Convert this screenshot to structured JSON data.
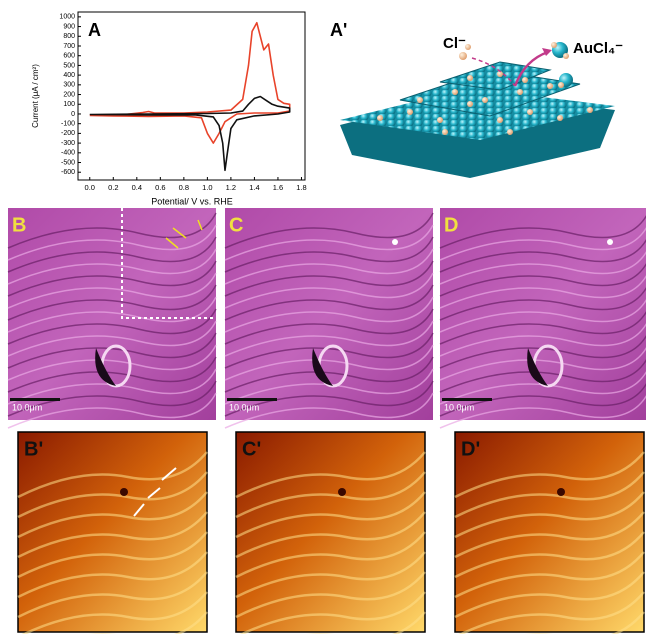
{
  "chart_data": {
    "type": "line",
    "panel_label": "A",
    "x_label": "Potential/ V vs. RHE",
    "y_label": "Current (μA / cm²)",
    "xlim": [
      -0.1,
      1.83
    ],
    "xticks": [
      {
        "value": 0,
        "label": "0.0"
      },
      0.2,
      0.4,
      0.6,
      0.8,
      {
        "value": 1,
        "label": "1.0"
      },
      1.2,
      1.4,
      1.6,
      1.8
    ],
    "ylim": [
      -680,
      1050
    ],
    "yticks": [
      -600,
      -500,
      -400,
      -300,
      -200,
      -100,
      0,
      100,
      200,
      300,
      400,
      500,
      600,
      700,
      800,
      900,
      1000
    ],
    "series": [
      {
        "color": "#e8432a",
        "x": [
          0.0,
          0.3,
          0.45,
          0.5,
          0.55,
          0.8,
          1.0,
          1.2,
          1.3,
          1.35,
          1.38,
          1.42,
          1.45,
          1.48,
          1.52,
          1.56,
          1.6,
          1.65,
          1.7,
          1.7,
          1.6,
          1.4,
          1.25,
          1.15,
          1.1,
          1.05,
          1.0,
          0.95,
          0.8,
          0.5,
          0.2,
          0.0
        ],
        "values": [
          -10,
          -5,
          15,
          25,
          10,
          10,
          20,
          40,
          150,
          500,
          850,
          940,
          800,
          660,
          720,
          400,
          150,
          110,
          100,
          30,
          10,
          10,
          0,
          -80,
          -200,
          -300,
          -200,
          -40,
          -20,
          -25,
          -20,
          -15
        ]
      },
      {
        "color": "#111111",
        "x": [
          0.0,
          0.5,
          1.0,
          1.2,
          1.3,
          1.35,
          1.4,
          1.45,
          1.5,
          1.55,
          1.6,
          1.7,
          1.7,
          1.6,
          1.4,
          1.25,
          1.2,
          1.17,
          1.15,
          1.13,
          1.1,
          1.05,
          0.9,
          0.5,
          0.0
        ],
        "values": [
          -5,
          0,
          5,
          10,
          30,
          100,
          160,
          180,
          140,
          100,
          80,
          60,
          20,
          0,
          -20,
          -60,
          -150,
          -400,
          -580,
          -300,
          -120,
          -30,
          -10,
          -10,
          -5
        ]
      }
    ]
  },
  "diagram": {
    "panel_label": "A'",
    "ion_in": "Cl⁻",
    "ion_out": "AuCl₄⁻"
  },
  "images": [
    {
      "label": "B",
      "scale": "10.0μm"
    },
    {
      "label": "C",
      "scale": "10.0μm"
    },
    {
      "label": "D",
      "scale": "10.0μm"
    }
  ],
  "zooms": [
    {
      "label": "B'"
    },
    {
      "label": "C'"
    },
    {
      "label": "D'"
    }
  ]
}
